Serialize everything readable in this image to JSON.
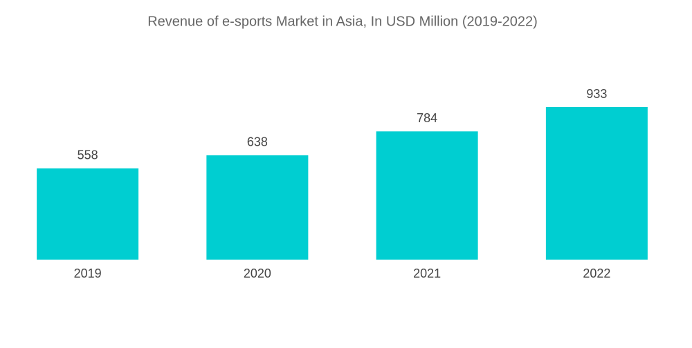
{
  "chart_data": {
    "type": "bar",
    "title": "Revenue of e-sports Market in Asia, In USD Million (2019-2022)",
    "categories": [
      "2019",
      "2020",
      "2021",
      "2022"
    ],
    "values": [
      558,
      638,
      784,
      933
    ],
    "color": "#00ced1"
  }
}
